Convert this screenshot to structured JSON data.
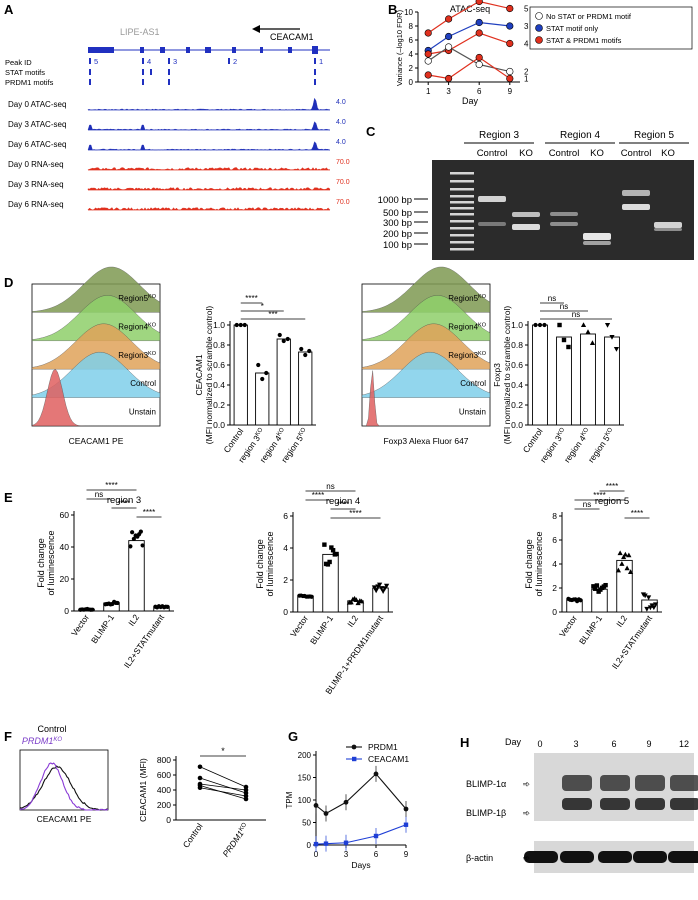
{
  "panels": {
    "A": {
      "letter": "A",
      "gene_label": "LIPE-AS1",
      "gene_name": "CEACAM1",
      "row_labels": [
        "Peak ID",
        "STAT motifs",
        "PRDM1 motifs"
      ],
      "peak_ids": [
        "5",
        "4",
        "3",
        "2",
        "1"
      ],
      "tracks": [
        {
          "name": "Day 0 ATAC-seq",
          "scale": "4.0",
          "color": "#1f2fb8"
        },
        {
          "name": "Day 3 ATAC-seq",
          "scale": "4.0",
          "color": "#1f2fb8"
        },
        {
          "name": "Day 6 ATAC-seq",
          "scale": "4.0",
          "color": "#1f2fb8"
        },
        {
          "name": "Day 0 RNA-seq",
          "scale": "70.0",
          "color": "#e0301e"
        },
        {
          "name": "Day 3 RNA-seq",
          "scale": "70.0",
          "color": "#e0301e"
        },
        {
          "name": "Day 6 RNA-seq",
          "scale": "70.0",
          "color": "#e0301e"
        }
      ]
    },
    "B": {
      "letter": "B",
      "chart_data": {
        "type": "line",
        "title": "ATAC-seq",
        "xlabel": "Day",
        "ylabel": "Variance (–log10 FDR)",
        "x": [
          1,
          3,
          6,
          9
        ],
        "xlim": [
          0,
          10
        ],
        "ylim": [
          0,
          10
        ],
        "yticks": [
          0,
          2,
          4,
          6,
          8,
          10
        ],
        "legend": [
          "No STAT or PRDM1 motif",
          "STAT motif only",
          "STAT & PRDM1 motifs"
        ],
        "series": [
          {
            "name": "5",
            "category": "STAT & PRDM1 motifs",
            "values": [
              7.0,
              9.0,
              11.5,
              10.5
            ]
          },
          {
            "name": "3",
            "category": "STAT motif only",
            "values": [
              4.5,
              6.5,
              8.5,
              8.0
            ]
          },
          {
            "name": "4",
            "category": "STAT & PRDM1 motifs",
            "values": [
              4.0,
              4.5,
              7.0,
              5.5
            ]
          },
          {
            "name": "2",
            "category": "No STAT or PRDM1 motif",
            "values": [
              3.0,
              5.0,
              2.5,
              1.5
            ]
          },
          {
            "name": "1",
            "category": "STAT & PRDM1 motifs",
            "values": [
              1.0,
              0.5,
              3.5,
              0.5
            ]
          }
        ],
        "colors": {
          "No STAT or PRDM1 motif": "#ffffff",
          "STAT motif only": "#1f3fbf",
          "STAT & PRDM1 motifs": "#e0301e"
        }
      }
    },
    "C": {
      "letter": "C",
      "groups": [
        "Region 3",
        "Region 4",
        "Region 5"
      ],
      "lanes": [
        "Control",
        "KO",
        "Control",
        "KO",
        "Control",
        "KO"
      ],
      "ladder": [
        "1000 bp",
        "500 bp",
        "300 bp",
        "200 bp",
        "100 bp"
      ]
    },
    "D": {
      "letter": "D",
      "hist1": {
        "labels": [
          "Region5",
          "Region4",
          "Region3",
          "Control",
          "Unstain"
        ],
        "sup": "KO",
        "xlabel": "CEACAM1 PE"
      },
      "hist2": {
        "labels": [
          "Region5",
          "Region4",
          "Region3",
          "Control",
          "Unstain"
        ],
        "sup": "KO",
        "xlabel": "Foxp3 Alexa Fluor 647"
      },
      "chart_data": [
        {
          "type": "bar",
          "ylabel": "CEACAM1",
          "ylabel2": "(MFI normalized to scramble control)",
          "categories": [
            "Control",
            "region 3",
            "region 4",
            "region 5"
          ],
          "sup": [
            "",
            "KO",
            "KO",
            "KO"
          ],
          "values": [
            1.0,
            0.52,
            0.86,
            0.73
          ],
          "ylim": [
            0,
            1.0
          ],
          "yticks": [
            0.0,
            0.2,
            0.4,
            0.6,
            0.8,
            1.0
          ],
          "sig": [
            [
              "****",
              0,
              1
            ],
            [
              "*",
              0,
              2
            ],
            [
              "***",
              0,
              3
            ]
          ]
        },
        {
          "type": "bar",
          "ylabel": "Foxp3",
          "ylabel2": "(MFI normalized to scramble control)",
          "categories": [
            "Control",
            "region 3",
            "region 4",
            "region 5"
          ],
          "sup": [
            "",
            "KO",
            "KO",
            "KO"
          ],
          "values": [
            1.0,
            0.88,
            0.91,
            0.88
          ],
          "ylim": [
            0,
            1.0
          ],
          "yticks": [
            0.0,
            0.2,
            0.4,
            0.6,
            0.8,
            1.0
          ],
          "sig": [
            [
              "ns",
              0,
              1
            ],
            [
              "ns",
              0,
              2
            ],
            [
              "ns",
              0,
              3
            ]
          ]
        }
      ]
    },
    "E": {
      "letter": "E",
      "chart_data": [
        {
          "type": "bar",
          "title": "region 3",
          "ylabel": "Fold change of luminescence",
          "categories": [
            "Vector",
            "BLIMP-1",
            "IL2",
            "IL2+STATmutant"
          ],
          "values": [
            1.0,
            5.0,
            44.0,
            2.5
          ],
          "ylim": [
            0,
            60
          ],
          "yticks": [
            0,
            20,
            40,
            60
          ],
          "sig": [
            [
              "****",
              0,
              2
            ],
            [
              "ns",
              0,
              1
            ],
            [
              "****",
              1,
              2
            ],
            [
              "****",
              2,
              3
            ]
          ]
        },
        {
          "type": "bar",
          "title": "region 4",
          "ylabel": "Fold change of luminescence",
          "categories": [
            "Vector",
            "BLIMP-1",
            "IL2",
            "BLIMP-1+PRDM1mutant"
          ],
          "values": [
            1.0,
            3.6,
            0.7,
            1.5
          ],
          "ylim": [
            0,
            6
          ],
          "yticks": [
            0,
            2,
            4,
            6
          ],
          "sig": [
            [
              "ns",
              0,
              2
            ],
            [
              "****",
              0,
              1
            ],
            [
              "****",
              1,
              2
            ],
            [
              "****",
              1,
              3
            ]
          ]
        },
        {
          "type": "bar",
          "title": "region 5",
          "ylabel": "Fold change of luminescence",
          "categories": [
            "Vector",
            "BLIMP-1",
            "IL2",
            "IL2+STATmutant"
          ],
          "values": [
            1.0,
            1.9,
            4.3,
            1.0
          ],
          "ylim": [
            0,
            8
          ],
          "yticks": [
            0,
            2,
            4,
            6,
            8
          ],
          "sig": [
            [
              "****",
              1,
              2
            ],
            [
              "****",
              0,
              2
            ],
            [
              "ns",
              0,
              1
            ],
            [
              "****",
              2,
              3
            ]
          ]
        }
      ]
    },
    "F": {
      "letter": "F",
      "legend": [
        "Control",
        "PRDM1"
      ],
      "legend_sup": "KO",
      "xlabel": "CEACAM1 PE",
      "chart_data": {
        "type": "scatter",
        "ylabel": "CEACAM1 (MFI)",
        "categories": [
          "Control",
          "PRDM1"
        ],
        "sup": [
          "",
          "KO"
        ],
        "pairs": [
          [
            710,
            440
          ],
          [
            560,
            360
          ],
          [
            480,
            400
          ],
          [
            460,
            280
          ],
          [
            430,
            320
          ]
        ],
        "ylim": [
          0,
          800
        ],
        "yticks": [
          0,
          200,
          400,
          600,
          800
        ],
        "sig": "*"
      }
    },
    "G": {
      "letter": "G",
      "chart_data": {
        "type": "line",
        "xlabel": "Days",
        "ylabel": "TPM",
        "x": [
          0,
          1,
          3,
          6,
          9
        ],
        "xticks": [
          0,
          3,
          6,
          9
        ],
        "ylim": [
          0,
          200
        ],
        "yticks": [
          0,
          50,
          100,
          150,
          200
        ],
        "series": [
          {
            "name": "PRDM1",
            "values": [
              88,
              70,
              95,
              158,
              80
            ],
            "color": "#111111"
          },
          {
            "name": "CEACAM1",
            "values": [
              2,
              3,
              5,
              20,
              45
            ],
            "color": "#1f3fd6"
          }
        ]
      }
    },
    "H": {
      "letter": "H",
      "day_label": "Day",
      "days": [
        "0",
        "3",
        "6",
        "9",
        "12"
      ],
      "bands": [
        "BLIMP-1α",
        "BLIMP-1β",
        "β-actin"
      ],
      "arrow": "➾"
    }
  }
}
